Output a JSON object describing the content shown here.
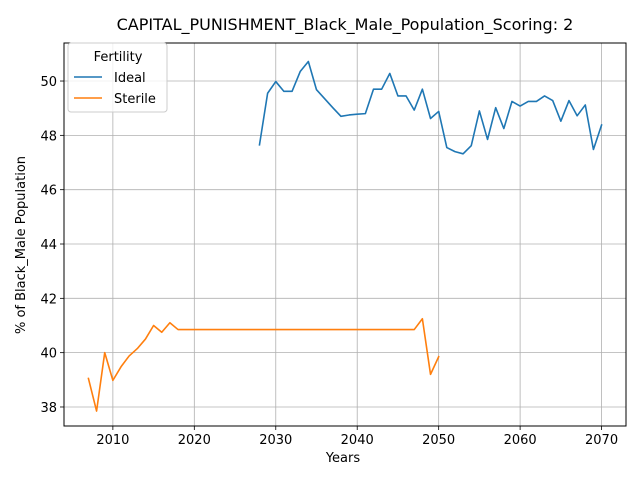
{
  "chart_data": {
    "type": "line",
    "title": "CAPITAL_PUNISHMENT_Black_Male_Population_Scoring: 2",
    "xlabel": "Years",
    "ylabel": "% of Black_Male Population",
    "xlim": [
      2004,
      2073
    ],
    "ylim": [
      37.3,
      51.4
    ],
    "xticks": [
      2010,
      2020,
      2030,
      2040,
      2050,
      2060,
      2070
    ],
    "yticks": [
      38,
      40,
      42,
      44,
      46,
      48,
      50
    ],
    "grid": true,
    "legend": {
      "title": "Fertility",
      "position": "top-left"
    },
    "series": [
      {
        "name": "Ideal",
        "color": "#1f77b4",
        "x": [
          2028,
          2029,
          2030,
          2031,
          2032,
          2033,
          2034,
          2035,
          2036,
          2037,
          2038,
          2039,
          2040,
          2041,
          2042,
          2043,
          2044,
          2045,
          2046,
          2047,
          2048,
          2049,
          2050,
          2051,
          2052,
          2053,
          2054,
          2055,
          2056,
          2057,
          2058,
          2059,
          2060,
          2061,
          2062,
          2063,
          2064,
          2065,
          2066,
          2067,
          2068,
          2069,
          2070
        ],
        "y": [
          47.65,
          49.55,
          49.98,
          49.62,
          49.62,
          50.35,
          50.72,
          49.68,
          49.35,
          49.02,
          48.7,
          48.75,
          48.78,
          48.8,
          49.7,
          49.7,
          50.28,
          49.45,
          49.45,
          48.93,
          49.7,
          48.62,
          48.88,
          47.55,
          47.4,
          47.32,
          47.62,
          48.9,
          47.85,
          49.02,
          48.25,
          49.25,
          49.08,
          49.25,
          49.25,
          49.45,
          49.28,
          48.52,
          49.28,
          48.72,
          49.12,
          47.48,
          48.38
        ]
      },
      {
        "name": "Sterile",
        "color": "#ff7f0e",
        "x": [
          2007,
          2008,
          2009,
          2010,
          2011,
          2012,
          2013,
          2014,
          2015,
          2016,
          2017,
          2018,
          2019,
          2020,
          2021,
          2022,
          2023,
          2024,
          2025,
          2026,
          2027,
          2028,
          2029,
          2030,
          2031,
          2032,
          2033,
          2034,
          2035,
          2036,
          2037,
          2038,
          2039,
          2040,
          2041,
          2042,
          2043,
          2044,
          2045,
          2046,
          2047,
          2048,
          2049,
          2050
        ],
        "y": [
          39.05,
          37.85,
          40.0,
          38.98,
          39.48,
          39.88,
          40.15,
          40.5,
          41.0,
          40.75,
          41.1,
          40.85,
          40.85,
          40.85,
          40.85,
          40.85,
          40.85,
          40.85,
          40.85,
          40.85,
          40.85,
          40.85,
          40.85,
          40.85,
          40.85,
          40.85,
          40.85,
          40.85,
          40.85,
          40.85,
          40.85,
          40.85,
          40.85,
          40.85,
          40.85,
          40.85,
          40.85,
          40.85,
          40.85,
          40.85,
          40.85,
          41.25,
          39.2,
          39.85
        ]
      }
    ]
  }
}
